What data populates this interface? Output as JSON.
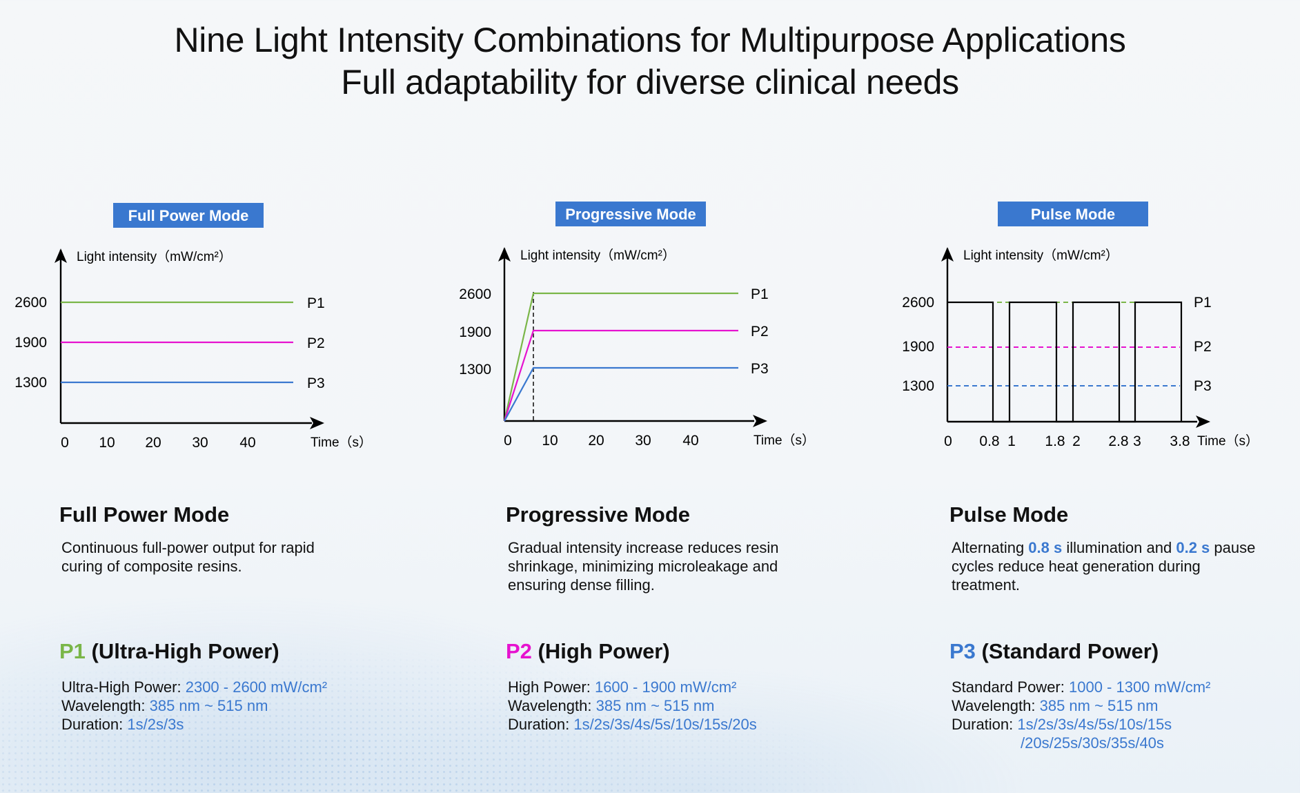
{
  "page": {
    "title_line1": "Nine Light Intensity Combinations for Multipurpose Applications",
    "title_line2": "Full adaptability for diverse clinical needs"
  },
  "colors": {
    "p1": "#7ab648",
    "p2": "#e612cf",
    "p3": "#3a78cf",
    "badge": "#3a78cf"
  },
  "chart_data": [
    {
      "type": "line",
      "title": "Full Power Mode",
      "ylabel": "Light intensity（mW/cm²）",
      "xlabel": "Time（s）",
      "xticks": [
        "0",
        "10",
        "20",
        "30",
        "40"
      ],
      "yticks": [
        "2600",
        "1900",
        "1300"
      ],
      "series": [
        {
          "name": "P1",
          "x": [
            0,
            50
          ],
          "y": [
            2600,
            2600
          ]
        },
        {
          "name": "P2",
          "x": [
            0,
            50
          ],
          "y": [
            1900,
            1900
          ]
        },
        {
          "name": "P3",
          "x": [
            0,
            50
          ],
          "y": [
            1300,
            1300
          ]
        }
      ]
    },
    {
      "type": "line",
      "title": "Progressive Mode",
      "ylabel": "Light intensity（mW/cm²）",
      "xlabel": "Time（s）",
      "xticks": [
        "0",
        "10",
        "20",
        "30",
        "40"
      ],
      "yticks": [
        "2600",
        "1900",
        "1300"
      ],
      "series": [
        {
          "name": "P1",
          "x": [
            0,
            6,
            50
          ],
          "y": [
            0,
            2600,
            2600
          ]
        },
        {
          "name": "P2",
          "x": [
            0,
            6,
            50
          ],
          "y": [
            0,
            1900,
            1900
          ]
        },
        {
          "name": "P3",
          "x": [
            0,
            6,
            50
          ],
          "y": [
            0,
            1300,
            1300
          ]
        }
      ]
    },
    {
      "type": "line",
      "title": "Pulse Mode",
      "ylabel": "Light intensity（mW/cm²）",
      "xlabel": "Time（s）",
      "xticks": [
        "0",
        "0.8",
        "1",
        "1.8",
        "2",
        "2.8",
        "3",
        "3.8"
      ],
      "yticks": [
        "2600",
        "1900",
        "1300"
      ],
      "series": [
        {
          "name": "P1",
          "x": [
            0,
            0.8,
            0.8,
            1,
            1,
            1.8,
            1.8,
            2,
            2,
            2.8,
            2.8,
            3,
            3,
            3.8,
            3.8
          ],
          "y": [
            2600,
            2600,
            0,
            0,
            2600,
            2600,
            0,
            0,
            2600,
            2600,
            0,
            0,
            2600,
            2600,
            0
          ]
        },
        {
          "name": "P2",
          "x": [
            0,
            3.8
          ],
          "y": [
            1900,
            1900
          ]
        },
        {
          "name": "P3",
          "x": [
            0,
            3.8
          ],
          "y": [
            1300,
            1300
          ]
        }
      ]
    }
  ],
  "modes": [
    {
      "title": "Full Power Mode",
      "desc": "Continuous full-power output for rapid curing of composite resins."
    },
    {
      "title": "Progressive Mode",
      "desc": "Gradual intensity increase reduces resin shrinkage, minimizing microleakage and ensuring dense filling."
    },
    {
      "title": "Pulse Mode",
      "desc_pre": "Alternating ",
      "desc_hl1": "0.8 s",
      "desc_mid": " illumination and ",
      "desc_hl2": "0.2 s",
      "desc_post": " pause cycles reduce heat generation during treatment."
    }
  ],
  "powers": [
    {
      "code": "P1",
      "name": " (Ultra-High Power)",
      "power_label": "Ultra-High Power: ",
      "power_value": "2300 - 2600 mW/cm²",
      "wave_label": "Wavelength: ",
      "wave_value": "385 nm ~ 515 nm",
      "dur_label": "Duration: ",
      "dur_value": "1s/2s/3s"
    },
    {
      "code": "P2",
      "name": " (High Power)",
      "power_label": "High Power: ",
      "power_value": "1600 - 1900 mW/cm²",
      "wave_label": "Wavelength: ",
      "wave_value": "385 nm ~ 515 nm",
      "dur_label": "Duration: ",
      "dur_value": "1s/2s/3s/4s/5s/10s/15s/20s"
    },
    {
      "code": "P3",
      "name": " (Standard Power)",
      "power_label": "Standard Power: ",
      "power_value": "1000 - 1300 mW/cm²",
      "wave_label": "Wavelength: ",
      "wave_value": "385 nm ~ 515 nm",
      "dur_label": "Duration: ",
      "dur_value": "1s/2s/3s/4s/5s/10s/15s",
      "dur_value2": "/20s/25s/30s/35s/40s"
    }
  ]
}
